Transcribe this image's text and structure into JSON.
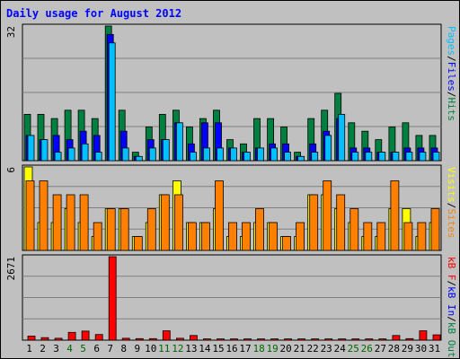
{
  "chart_data": {
    "type": "bar",
    "title": "Daily usage for August 2012",
    "categories": [
      "1",
      "2",
      "3",
      "4",
      "5",
      "6",
      "7",
      "8",
      "9",
      "10",
      "11",
      "12",
      "13",
      "14",
      "15",
      "16",
      "17",
      "18",
      "19",
      "20",
      "21",
      "22",
      "23",
      "24",
      "25",
      "26",
      "27",
      "28",
      "29",
      "30",
      "31"
    ],
    "weekend_days": [
      "4",
      "5",
      "11",
      "12",
      "18",
      "19",
      "25",
      "26"
    ],
    "weekend_color": "#006600",
    "weekday_color": "#000000",
    "panels": [
      {
        "id": "hits_files_pages",
        "max_label": "32",
        "ylim": [
          0,
          32
        ],
        "grid": true,
        "legend": [
          {
            "text": "Pages",
            "color": "#00c0ff"
          },
          {
            "text": "/",
            "color": "#000000"
          },
          {
            "text": "Files",
            "color": "#0000ff"
          },
          {
            "text": "/",
            "color": "#000000"
          },
          {
            "text": "Hits",
            "color": "#008040"
          }
        ],
        "series": [
          {
            "name": "Hits",
            "color": "#008040",
            "values": [
              11,
              11,
              10,
              12,
              12,
              10,
              32,
              12,
              2,
              8,
              11,
              12,
              8,
              10,
              12,
              5,
              4,
              10,
              10,
              8,
              2,
              10,
              12,
              16,
              9,
              7,
              5,
              8,
              9,
              6,
              6
            ]
          },
          {
            "name": "Files",
            "color": "#0000ff",
            "values": [
              6,
              5,
              6,
              5,
              7,
              6,
              30,
              7,
              1,
              5,
              5,
              9,
              4,
              9,
              9,
              3,
              2,
              3,
              4,
              4,
              1,
              4,
              7,
              10,
              3,
              3,
              2,
              2,
              3,
              3,
              3
            ]
          },
          {
            "name": "Pages",
            "color": "#00c0ff",
            "values": [
              6,
              5,
              2,
              3,
              4,
              2,
              28,
              3,
              1,
              3,
              5,
              9,
              2,
              3,
              3,
              3,
              2,
              3,
              3,
              2,
              1,
              2,
              6,
              11,
              2,
              2,
              2,
              2,
              2,
              2,
              2
            ]
          }
        ]
      },
      {
        "id": "visits_sites",
        "max_label": "6",
        "ylim": [
          0,
          6
        ],
        "grid": true,
        "legend": [
          {
            "text": "Visits",
            "color": "#ffff00"
          },
          {
            "text": "/",
            "color": "#000000"
          },
          {
            "text": "Sites",
            "color": "#ff8000"
          }
        ],
        "series": [
          {
            "name": "Visits",
            "color": "#ffff00",
            "values": [
              6,
              2,
              2,
              3,
              2,
              1,
              3,
              3,
              1,
              2,
              4,
              5,
              2,
              2,
              3,
              1,
              1,
              2,
              2,
              1,
              1,
              4,
              4,
              3,
              2,
              1,
              1,
              3,
              3,
              1,
              2
            ]
          },
          {
            "name": "Sites",
            "color": "#ff8000",
            "values": [
              5,
              5,
              4,
              4,
              4,
              2,
              3,
              3,
              1,
              3,
              4,
              4,
              2,
              2,
              5,
              2,
              2,
              3,
              2,
              1,
              2,
              4,
              5,
              4,
              3,
              2,
              2,
              5,
              2,
              2,
              3
            ]
          }
        ]
      },
      {
        "id": "kbytes",
        "max_label": "2671",
        "ylim": [
          0,
          2671
        ],
        "grid": true,
        "legend": [
          {
            "text": "kB F",
            "color": "#ff0000"
          },
          {
            "text": "/",
            "color": "#000000"
          },
          {
            "text": "kB In",
            "color": "#0000ff"
          },
          {
            "text": "/",
            "color": "#000000"
          },
          {
            "text": "kB Out",
            "color": "#008040"
          }
        ],
        "series": [
          {
            "name": "kB F",
            "color": "#ff0000",
            "values": [
              130,
              80,
              60,
              250,
              290,
              180,
              2671,
              60,
              50,
              50,
              300,
              60,
              150,
              40,
              40,
              40,
              40,
              40,
              40,
              40,
              40,
              40,
              40,
              40,
              40,
              40,
              40,
              150,
              50,
              300,
              170
            ]
          }
        ]
      }
    ]
  }
}
